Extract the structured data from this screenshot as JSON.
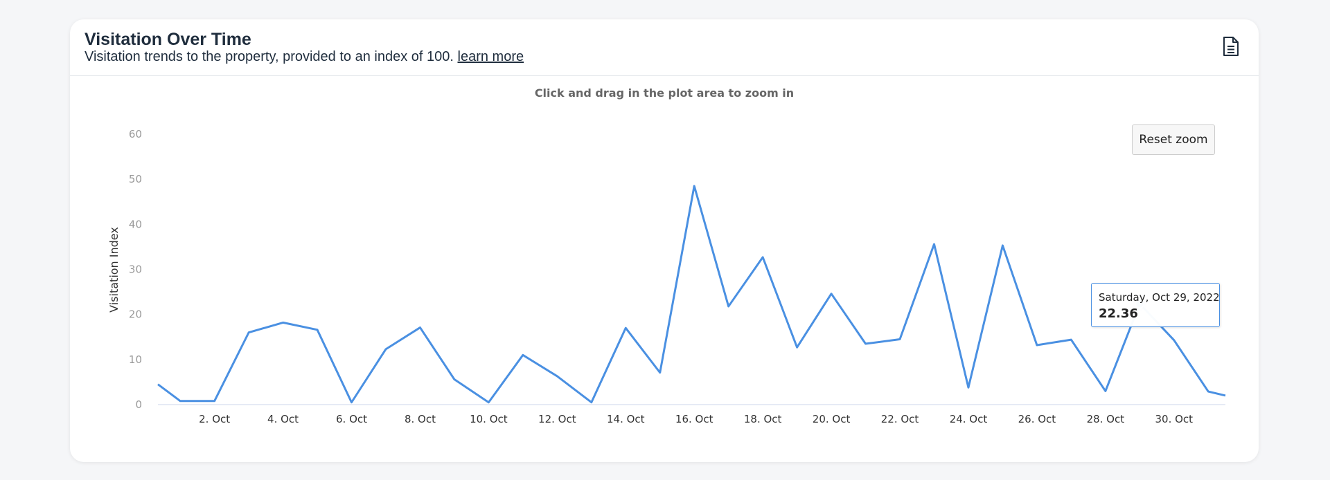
{
  "card": {
    "title": "Visitation Over Time",
    "subtitle": "Visitation trends to the property, provided to an index of 100.",
    "learn_more": "learn more",
    "export_icon": "document-icon"
  },
  "chart": {
    "zoom_hint": "Click and drag in the plot area to zoom in",
    "reset_zoom_label": "Reset zoom",
    "tooltip": {
      "date": "Saturday, Oct 29, 2022",
      "value": "22.36"
    }
  },
  "colors": {
    "series": "#4a90e2",
    "title": "#1f2d3d",
    "axis_text": "#999999"
  },
  "chart_data": {
    "type": "line",
    "title": "",
    "xlabel": "",
    "ylabel": "Visitation Index",
    "ylim": [
      0,
      60
    ],
    "yticks": [
      0,
      10,
      20,
      30,
      40,
      50,
      60
    ],
    "xlim": [
      0.35,
      31.5
    ],
    "xticks": [
      2,
      4,
      6,
      8,
      10,
      12,
      14,
      16,
      18,
      20,
      22,
      24,
      26,
      28,
      30
    ],
    "xtick_labels": [
      "2. Oct",
      "4. Oct",
      "6. Oct",
      "8. Oct",
      "10. Oct",
      "12. Oct",
      "14. Oct",
      "16. Oct",
      "18. Oct",
      "20. Oct",
      "22. Oct",
      "24. Oct",
      "26. Oct",
      "28. Oct",
      "30. Oct"
    ],
    "grid": false,
    "legend": "none",
    "series": [
      {
        "x": [
          1,
          2,
          3,
          4,
          5,
          6,
          7,
          8,
          9,
          10,
          11,
          12,
          13,
          14,
          15,
          16,
          17,
          18,
          19,
          20,
          21,
          22,
          23,
          24,
          25,
          26,
          27,
          28,
          29,
          30,
          31
        ],
        "y": [
          0.8,
          0.8,
          16.0,
          18.2,
          16.6,
          0.5,
          12.3,
          17.1,
          5.6,
          0.5,
          11.0,
          6.3,
          0.5,
          17.0,
          7.1,
          48.5,
          21.8,
          32.7,
          12.7,
          24.6,
          13.5,
          14.5,
          35.6,
          3.8,
          35.3,
          13.2,
          14.4,
          3.0,
          22.36,
          14.3,
          2.9
        ],
        "y_start": 4.5
      }
    ],
    "highlight": {
      "x": 29,
      "y": 22.36,
      "label": "Saturday, Oct 29, 2022"
    }
  }
}
